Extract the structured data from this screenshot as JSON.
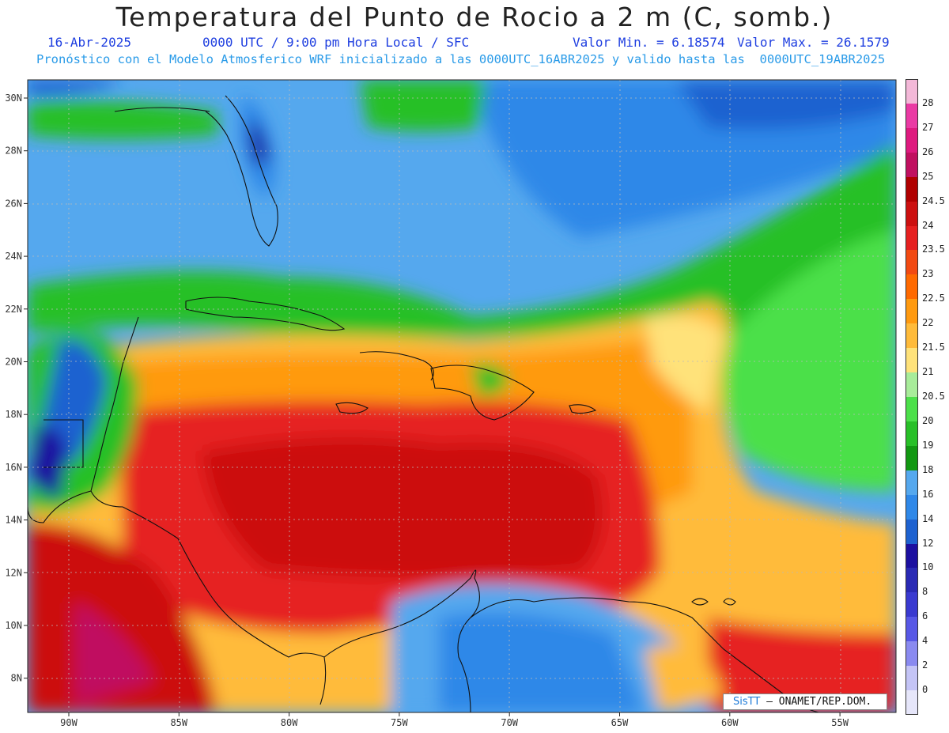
{
  "title": "Temperatura del Punto de Rocio a 2 m (C, somb.)",
  "subtitle": {
    "date": "16-Abr-2025",
    "time": "0000 UTC / 9:00 pm Hora Local / SFC",
    "min": "Valor Min. = 6.18574",
    "max": "Valor Max. = 26.1579"
  },
  "description": "Pronóstico con el Modelo Atmosferico WRF inicializado a las 0000UTC_16ABR2025 y valido hasta las  0000UTC_19ABR2025",
  "lat_labels": [
    "30N",
    "28N",
    "26N",
    "24N",
    "22N",
    "20N",
    "18N",
    "16N",
    "14N",
    "12N",
    "10N",
    "8N"
  ],
  "lon_labels": [
    "90W",
    "85W",
    "80W",
    "75W",
    "70W",
    "65W",
    "60W",
    "55W"
  ],
  "colorbar": {
    "labels": [
      "28",
      "27",
      "26",
      "25",
      "24.5",
      "24",
      "23.5",
      "23",
      "22.5",
      "22",
      "21.5",
      "21",
      "20.5",
      "20",
      "19",
      "18",
      "16",
      "14",
      "12",
      "10",
      "8",
      "6",
      "4",
      "2",
      "0"
    ],
    "colors": [
      "#f3b8d8",
      "#ea3aa4",
      "#de1a7f",
      "#c01060",
      "#b00000",
      "#cc1010",
      "#e62020",
      "#f24a12",
      "#ff6a00",
      "#ff9a10",
      "#ffbb3a",
      "#ffe27a",
      "#a8ec9a",
      "#4ce04a",
      "#28c028",
      "#129812",
      "#55a8ee",
      "#2f88e8",
      "#1e62d0",
      "#1c10a0",
      "#2a2ab4",
      "#3a3ad0",
      "#5858e6",
      "#8a8af0",
      "#c4c4f6",
      "#e6e6fa"
    ]
  },
  "credit": {
    "brand": "SisTT",
    "org": "– ONAMET/REP.DOM."
  }
}
